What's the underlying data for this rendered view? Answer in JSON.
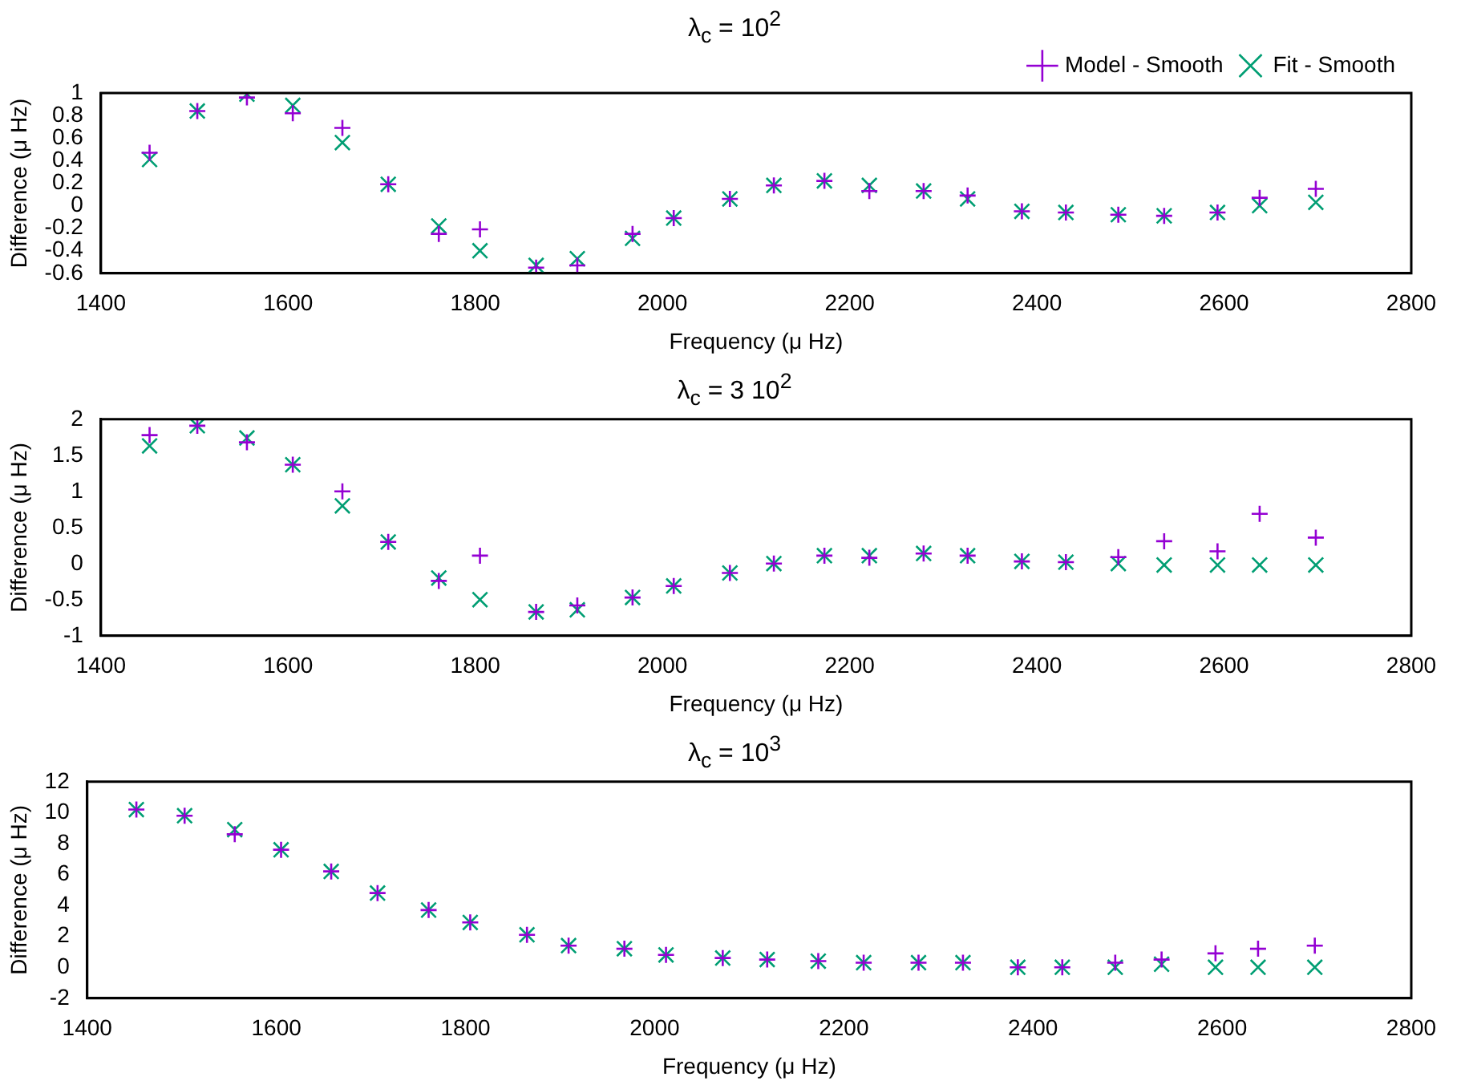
{
  "chart_data": [
    {
      "type": "scatter",
      "title": "λ$_{c}$ = 10$^{2}$",
      "xlabel": "Frequency (μ Hz)",
      "ylabel": "Difference (μ Hz)",
      "x": [
        1452,
        1503,
        1556,
        1605,
        1658,
        1707,
        1761,
        1805,
        1865,
        1909,
        1968,
        2012,
        2072,
        2119,
        2173,
        2221,
        2279,
        2326,
        2384,
        2431,
        2487,
        2536,
        2593,
        2638,
        2698
      ],
      "xlim": [
        1400,
        2800
      ],
      "xticks": [
        1400,
        1600,
        1800,
        2000,
        2200,
        2400,
        2600,
        2800
      ],
      "ylim": [
        -0.6,
        1
      ],
      "yticks": [
        -0.6,
        -0.4,
        -0.2,
        0,
        0.2,
        0.4,
        0.6,
        0.8,
        1
      ],
      "grid": false,
      "legend": "top right",
      "series": [
        {
          "name": "Model - Smooth",
          "color": "#9400d3",
          "marker": "cross",
          "values": [
            0.47,
            0.84,
            0.96,
            0.82,
            0.69,
            0.19,
            -0.25,
            -0.21,
            -0.55,
            -0.53,
            -0.25,
            -0.11,
            0.06,
            0.18,
            0.22,
            0.13,
            0.13,
            0.09,
            -0.05,
            -0.06,
            -0.08,
            -0.09,
            -0.06,
            0.07,
            0.15
          ]
        },
        {
          "name": "Fit - Smooth",
          "color": "#009e73",
          "marker": "x",
          "values": [
            0.41,
            0.84,
            0.99,
            0.89,
            0.56,
            0.19,
            -0.18,
            -0.4,
            -0.53,
            -0.47,
            -0.29,
            -0.11,
            0.06,
            0.18,
            0.22,
            0.18,
            0.13,
            0.06,
            -0.05,
            -0.06,
            -0.08,
            -0.09,
            -0.06,
            0,
            0.03
          ]
        }
      ]
    },
    {
      "type": "scatter",
      "title": "λ$_{c}$ = 3 10$^{2}$",
      "xlabel": "Frequency (μ Hz)",
      "ylabel": "Difference (μ Hz)",
      "x": [
        1452,
        1503,
        1556,
        1605,
        1658,
        1707,
        1761,
        1805,
        1865,
        1909,
        1968,
        2012,
        2072,
        2119,
        2173,
        2221,
        2279,
        2326,
        2384,
        2431,
        2487,
        2536,
        2593,
        2638,
        2698
      ],
      "xlim": [
        1400,
        2800
      ],
      "xticks": [
        1400,
        1600,
        1800,
        2000,
        2200,
        2400,
        2600,
        2800
      ],
      "ylim": [
        -1,
        2
      ],
      "yticks": [
        -1,
        -0.5,
        0,
        0.5,
        1,
        1.5,
        2
      ],
      "grid": false,
      "legend": false,
      "series": [
        {
          "color": "#9400d3",
          "marker": "cross",
          "values": [
            1.78,
            1.91,
            1.68,
            1.37,
            1.0,
            0.3,
            -0.24,
            0.11,
            -0.67,
            -0.58,
            -0.47,
            -0.31,
            -0.13,
            0,
            0.11,
            0.08,
            0.14,
            0.11,
            0.03,
            0.02,
            0.09,
            0.31,
            0.17,
            0.69,
            0.36
          ]
        },
        {
          "color": "#009e73",
          "marker": "x",
          "values": [
            1.63,
            1.91,
            1.74,
            1.37,
            0.8,
            0.3,
            -0.2,
            -0.5,
            -0.67,
            -0.64,
            -0.47,
            -0.31,
            -0.13,
            0,
            0.11,
            0.11,
            0.14,
            0.11,
            0.03,
            0.02,
            0,
            -0.02,
            -0.02,
            -0.02,
            -0.02
          ]
        }
      ]
    },
    {
      "type": "scatter",
      "title": "λ$_{c}$ = 10$^{3}$",
      "xlabel": "Frequency (μ Hz)",
      "ylabel": "Difference (μ Hz)",
      "x": [
        1452,
        1503,
        1556,
        1605,
        1658,
        1707,
        1761,
        1805,
        1865,
        1909,
        1968,
        2012,
        2072,
        2119,
        2173,
        2221,
        2279,
        2326,
        2384,
        2431,
        2487,
        2536,
        2593,
        2638,
        2698
      ],
      "xlim": [
        1400,
        2800
      ],
      "xticks": [
        1400,
        1600,
        1800,
        2000,
        2200,
        2400,
        2600,
        2800
      ],
      "ylim": [
        -2,
        12
      ],
      "yticks": [
        -2,
        0,
        2,
        4,
        6,
        8,
        10,
        12
      ],
      "grid": false,
      "legend": false,
      "series": [
        {
          "color": "#9400d3",
          "marker": "cross",
          "values": [
            10.2,
            9.8,
            8.6,
            7.6,
            6.2,
            4.8,
            3.7,
            2.9,
            2.1,
            1.4,
            1.2,
            0.8,
            0.6,
            0.5,
            0.4,
            0.3,
            0.3,
            0.3,
            0,
            0,
            0.3,
            0.5,
            0.9,
            1.2,
            1.4
          ]
        },
        {
          "color": "#009e73",
          "marker": "x",
          "values": [
            10.2,
            9.8,
            8.9,
            7.6,
            6.2,
            4.8,
            3.7,
            2.9,
            2.1,
            1.4,
            1.2,
            0.8,
            0.6,
            0.5,
            0.4,
            0.3,
            0.3,
            0.3,
            0,
            0,
            0,
            0.2,
            0,
            0,
            0
          ]
        }
      ]
    }
  ]
}
